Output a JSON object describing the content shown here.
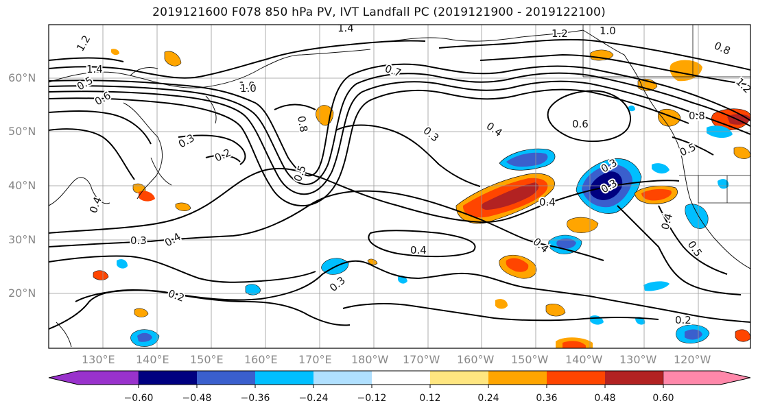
{
  "title": "2019121600 F078 850 hPa PV, IVT Landfall PC (2019121900 - 2019122100)",
  "lat_labels": [
    "60°N",
    "50°N",
    "40°N",
    "30°N",
    "20°N"
  ],
  "lon_labels": [
    "130°E",
    "140°E",
    "150°E",
    "160°E",
    "170°E",
    "180°W",
    "170°W",
    "160°W",
    "150°W",
    "140°W",
    "130°W",
    "120°W"
  ],
  "colorbar": {
    "labels": [
      "−0.60",
      "−0.48",
      "−0.36",
      "−0.24",
      "−0.12",
      "0.12",
      "0.24",
      "0.36",
      "0.48",
      "0.60"
    ],
    "colors": [
      "#9932cc",
      "#000080",
      "#3a5fcd",
      "#00bfff",
      "#b0e0ff",
      "#ffffff",
      "#ffe680",
      "#ffa500",
      "#ff4500",
      "#b22222",
      "#ff88aa"
    ]
  },
  "contour_labels": [
    "1.2",
    "1.4",
    "1.4",
    "1.2",
    "1.0",
    "0.8",
    "1.0",
    "0.7",
    "0.5",
    "0.6",
    "0.3",
    "0.2",
    "0.4",
    "0.8",
    "0.5",
    "0.3",
    "0.4",
    "0.6",
    "0.5",
    "0.8",
    "0.3",
    "0.3",
    "0.4",
    "0.4",
    "0.4",
    "0.5",
    "0.3",
    "0.4",
    "0.4",
    "0.3",
    "0.2",
    "0.2",
    "1.0",
    "1.2"
  ]
}
